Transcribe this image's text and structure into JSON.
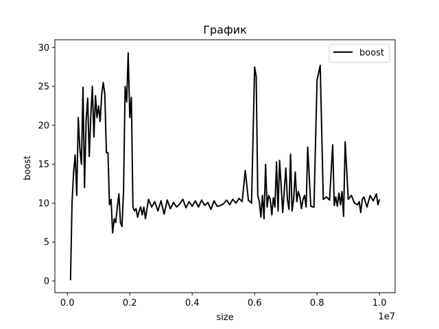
{
  "chart_data": {
    "type": "line",
    "title": "График",
    "xlabel": "size",
    "ylabel": "boost",
    "x_offset_label": "1e7",
    "xlim": [
      -0.04,
      1.05
    ],
    "ylim": [
      -1.5,
      31
    ],
    "x_ticks": [
      0.0,
      0.2,
      0.4,
      0.6,
      0.8,
      1.0
    ],
    "x_tick_labels": [
      "0.0",
      "0.2",
      "0.4",
      "0.6",
      "0.8",
      "1.0"
    ],
    "y_ticks": [
      0,
      5,
      10,
      15,
      20,
      25,
      30
    ],
    "y_tick_labels": [
      "0",
      "5",
      "10",
      "15",
      "20",
      "25",
      "30"
    ],
    "grid": false,
    "legend_position": "top-right",
    "series": [
      {
        "name": "boost",
        "color": "#000000",
        "x": [
          0.01,
          0.015,
          0.02,
          0.025,
          0.03,
          0.035,
          0.04,
          0.045,
          0.05,
          0.055,
          0.06,
          0.065,
          0.07,
          0.075,
          0.08,
          0.085,
          0.09,
          0.095,
          0.1,
          0.105,
          0.11,
          0.115,
          0.12,
          0.125,
          0.13,
          0.135,
          0.14,
          0.145,
          0.15,
          0.155,
          0.16,
          0.165,
          0.17,
          0.175,
          0.18,
          0.185,
          0.19,
          0.195,
          0.2,
          0.205,
          0.21,
          0.215,
          0.22,
          0.225,
          0.23,
          0.235,
          0.24,
          0.245,
          0.25,
          0.26,
          0.27,
          0.28,
          0.29,
          0.3,
          0.31,
          0.32,
          0.33,
          0.34,
          0.35,
          0.36,
          0.37,
          0.38,
          0.39,
          0.4,
          0.41,
          0.42,
          0.43,
          0.44,
          0.45,
          0.46,
          0.47,
          0.48,
          0.49,
          0.5,
          0.51,
          0.52,
          0.53,
          0.54,
          0.55,
          0.56,
          0.57,
          0.58,
          0.59,
          0.6,
          0.605,
          0.61,
          0.615,
          0.62,
          0.625,
          0.63,
          0.635,
          0.64,
          0.645,
          0.65,
          0.655,
          0.66,
          0.665,
          0.67,
          0.675,
          0.68,
          0.69,
          0.7,
          0.705,
          0.71,
          0.715,
          0.72,
          0.725,
          0.73,
          0.735,
          0.74,
          0.745,
          0.75,
          0.755,
          0.76,
          0.765,
          0.77,
          0.78,
          0.79,
          0.8,
          0.81,
          0.82,
          0.83,
          0.84,
          0.85,
          0.855,
          0.86,
          0.865,
          0.87,
          0.875,
          0.88,
          0.885,
          0.89,
          0.9,
          0.91,
          0.92,
          0.93,
          0.935,
          0.94,
          0.945,
          0.95,
          0.96,
          0.97,
          0.98,
          0.99,
          0.995,
          1.0
        ],
        "y": [
          0.1,
          10.0,
          14.0,
          16.2,
          11.0,
          21.0,
          17.0,
          15.0,
          24.9,
          12.0,
          20.5,
          23.5,
          16.0,
          21.0,
          25.0,
          18.5,
          23.8,
          21.0,
          22.5,
          20.5,
          24.0,
          25.5,
          24.0,
          16.5,
          16.5,
          9.8,
          10.5,
          6.2,
          8.0,
          7.5,
          9.5,
          11.2,
          7.5,
          7.0,
          11.5,
          25.0,
          23.0,
          29.3,
          21.0,
          23.6,
          9.5,
          9.0,
          9.3,
          8.2,
          9.0,
          9.5,
          8.5,
          9.5,
          8.0,
          10.5,
          9.5,
          10.2,
          9.0,
          10.3,
          8.6,
          10.4,
          9.3,
          10.1,
          9.5,
          9.9,
          10.5,
          9.4,
          10.2,
          9.6,
          10.3,
          9.5,
          10.4,
          9.7,
          10.1,
          9.2,
          10.3,
          9.6,
          9.7,
          9.9,
          10.4,
          9.8,
          10.5,
          10.0,
          10.6,
          10.2,
          14.2,
          10.4,
          10.0,
          27.5,
          26.3,
          11.0,
          10.2,
          8.2,
          11.0,
          8.0,
          15.0,
          9.5,
          11.0,
          10.5,
          8.5,
          10.7,
          9.5,
          15.3,
          9.0,
          15.5,
          8.8,
          14.5,
          10.5,
          9.2,
          16.3,
          9.0,
          10.5,
          14.0,
          10.2,
          11.5,
          10.8,
          9.3,
          10.5,
          11.0,
          9.5,
          17.2,
          9.6,
          9.5,
          25.8,
          27.7,
          10.5,
          10.8,
          10.4,
          17.5,
          9.7,
          10.8,
          9.6,
          11.3,
          9.8,
          11.5,
          8.3,
          17.9,
          10.5,
          11.0,
          10.0,
          9.8,
          10.2,
          8.8,
          10.5,
          10.8,
          9.5,
          11.0,
          10.3,
          11.2,
          9.8,
          10.5
        ],
        "type": "line"
      }
    ]
  }
}
